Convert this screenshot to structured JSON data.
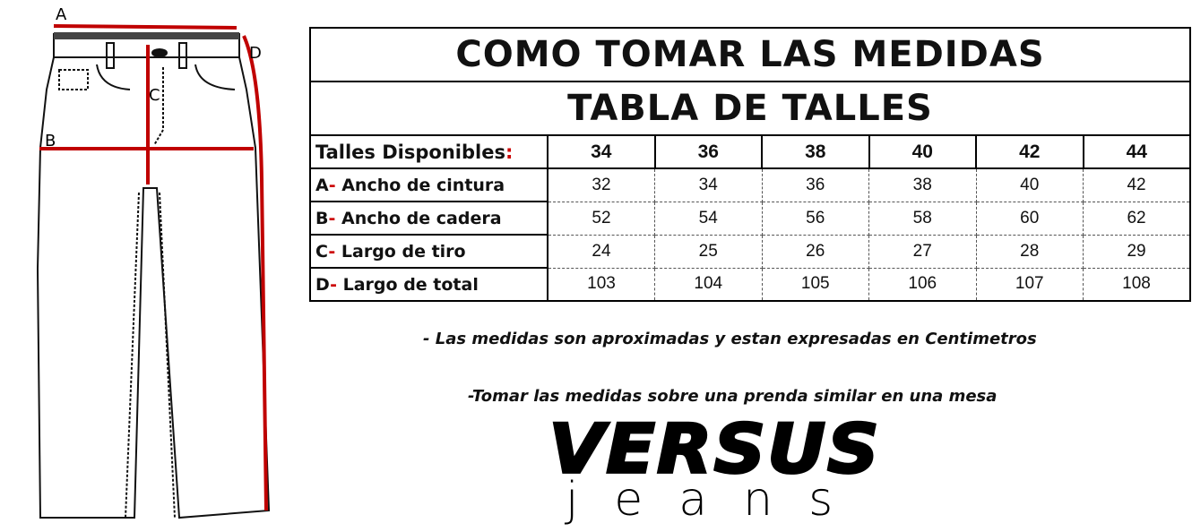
{
  "diagram": {
    "labels": {
      "a": "A",
      "b": "B",
      "c": "C",
      "d": "D"
    },
    "measure_color": "#c00000"
  },
  "table": {
    "title": "COMO TOMAR LAS MEDIDAS",
    "subtitle": "TABLA DE TALLES",
    "header_label": "Talles Disponibles",
    "header_colon": ":",
    "sizes": [
      "34",
      "36",
      "38",
      "40",
      "42",
      "44"
    ],
    "rows": [
      {
        "letter": "A",
        "dash": "-",
        "label": " Ancho de cintura",
        "values": [
          "32",
          "34",
          "36",
          "38",
          "40",
          "42"
        ]
      },
      {
        "letter": "B",
        "dash": "-",
        "label": " Ancho de cadera",
        "values": [
          "52",
          "54",
          "56",
          "58",
          "60",
          "62"
        ]
      },
      {
        "letter": "C",
        "dash": "-",
        "label": " Largo de tiro",
        "values": [
          "24",
          "25",
          "26",
          "27",
          "28",
          "29"
        ]
      },
      {
        "letter": "D",
        "dash": "-",
        "label": " Largo de total",
        "values": [
          "103",
          "104",
          "105",
          "106",
          "107",
          "108"
        ]
      }
    ]
  },
  "notes": [
    "- Las medidas son aproximadas y estan expresadas en Centimetros",
    "-Tomar las medidas sobre una prenda similar en una mesa"
  ],
  "logo": {
    "brand": "VERSUS",
    "sub": "jeans"
  }
}
